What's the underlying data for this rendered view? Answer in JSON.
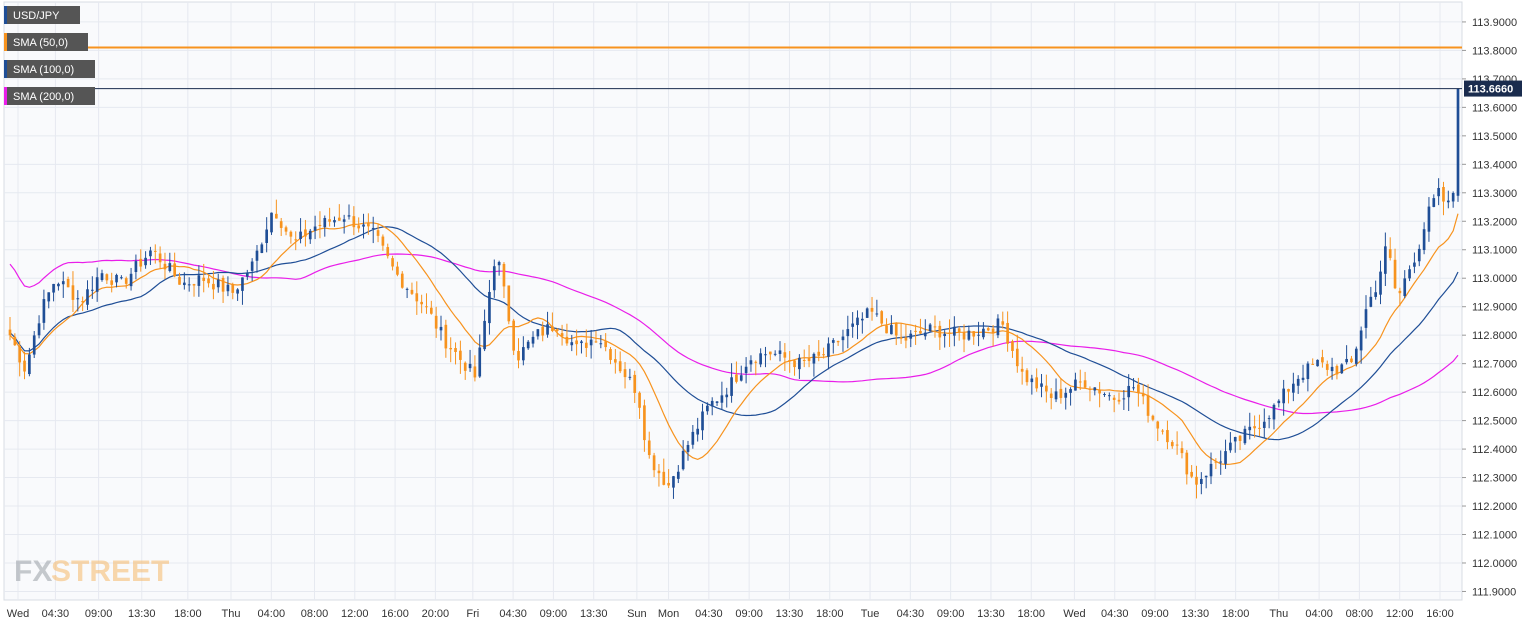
{
  "chart_data": {
    "type": "candlestick",
    "instrument": "USD/JPY",
    "indicators": [
      {
        "name": "SMA (50,0)",
        "color": "#f7931e"
      },
      {
        "name": "SMA (100,0)",
        "color": "#1f4e96"
      },
      {
        "name": "SMA (200,0)",
        "color": "#e91ee9"
      }
    ],
    "last_price": "113.6660",
    "last_price_value": 113.666,
    "resistance_level": 113.81,
    "ylim": [
      111.87,
      113.97
    ],
    "y_ticks": [
      "111.9000",
      "112.0000",
      "112.1000",
      "112.2000",
      "112.3000",
      "112.4000",
      "112.5000",
      "112.6000",
      "112.7000",
      "112.8000",
      "112.9000",
      "113.0000",
      "113.1000",
      "113.2000",
      "113.3000",
      "113.4000",
      "113.5000",
      "113.6000",
      "113.7000",
      "113.8000",
      "113.9000"
    ],
    "x_ticks": [
      "Wed",
      "04:30",
      "09:00",
      "13:30",
      "18:00",
      "Thu",
      "04:00",
      "08:00",
      "12:00",
      "16:00",
      "20:00",
      "Fri",
      "04:30",
      "09:00",
      "13:30",
      "Sun",
      "Mon",
      "04:30",
      "09:00",
      "13:30",
      "18:00",
      "Tue",
      "04:30",
      "09:00",
      "13:30",
      "18:00",
      "Wed",
      "04:30",
      "09:00",
      "13:30",
      "18:00",
      "Thu",
      "04:00",
      "08:00",
      "12:00",
      "16:00"
    ],
    "bar_count": 300,
    "close_path": [
      [
        0,
        112.8
      ],
      [
        3,
        112.68
      ],
      [
        6,
        112.88
      ],
      [
        9,
        113.0
      ],
      [
        14,
        112.92
      ],
      [
        18,
        113.02
      ],
      [
        22,
        112.98
      ],
      [
        28,
        113.1
      ],
      [
        34,
        112.98
      ],
      [
        38,
        113.0
      ],
      [
        44,
        112.95
      ],
      [
        48,
        113.05
      ],
      [
        52,
        113.25
      ],
      [
        56,
        113.12
      ],
      [
        60,
        113.18
      ],
      [
        66,
        113.22
      ],
      [
        72,
        113.15
      ],
      [
        76,
        113.02
      ],
      [
        82,
        112.9
      ],
      [
        86,
        112.78
      ],
      [
        92,
        112.65
      ],
      [
        96,
        113.1
      ],
      [
        100,
        112.72
      ],
      [
        104,
        112.8
      ],
      [
        108,
        112.84
      ],
      [
        112,
        112.75
      ],
      [
        116,
        112.8
      ],
      [
        120,
        112.7
      ],
      [
        124,
        112.6
      ],
      [
        126,
        112.38
      ],
      [
        130,
        112.27
      ],
      [
        134,
        112.42
      ],
      [
        138,
        112.55
      ],
      [
        142,
        112.62
      ],
      [
        146,
        112.72
      ],
      [
        150,
        112.74
      ],
      [
        156,
        112.7
      ],
      [
        160,
        112.72
      ],
      [
        166,
        112.82
      ],
      [
        170,
        112.88
      ],
      [
        176,
        112.78
      ],
      [
        182,
        112.82
      ],
      [
        188,
        112.8
      ],
      [
        196,
        112.84
      ],
      [
        200,
        112.66
      ],
      [
        206,
        112.58
      ],
      [
        212,
        112.64
      ],
      [
        218,
        112.58
      ],
      [
        222,
        112.62
      ],
      [
        226,
        112.5
      ],
      [
        230,
        112.42
      ],
      [
        234,
        112.28
      ],
      [
        238,
        112.35
      ],
      [
        242,
        112.42
      ],
      [
        246,
        112.48
      ],
      [
        250,
        112.55
      ],
      [
        254,
        112.65
      ],
      [
        258,
        112.7
      ],
      [
        262,
        112.68
      ],
      [
        265,
        112.7
      ],
      [
        268,
        112.9
      ],
      [
        270,
        112.98
      ],
      [
        272,
        113.12
      ],
      [
        274,
        112.92
      ],
      [
        276,
        113.02
      ],
      [
        278,
        113.1
      ],
      [
        280,
        113.22
      ],
      [
        282,
        113.3
      ],
      [
        284,
        113.25
      ],
      [
        286,
        113.35
      ]
    ],
    "series_notes": "Pricing shown as 5-minute style candles; orange = bearish, blue = bullish"
  },
  "branding": {
    "logo_fx": "FX",
    "logo_street": "STREET"
  },
  "colors": {
    "bull": "#1f4e96",
    "bear": "#f7931e",
    "grid": "#e6e9f0",
    "background": "#f9fafc",
    "tag_bg": "#555555"
  }
}
